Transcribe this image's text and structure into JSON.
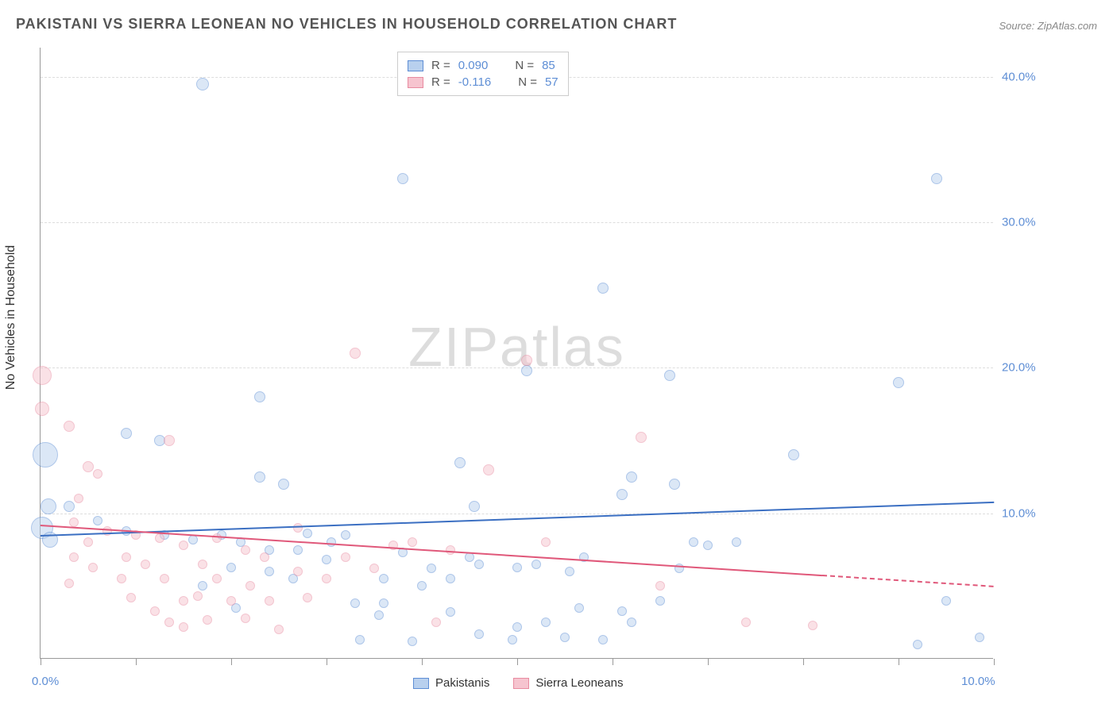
{
  "title": "PAKISTANI VS SIERRA LEONEAN NO VEHICLES IN HOUSEHOLD CORRELATION CHART",
  "source": "Source: ZipAtlas.com",
  "watermark": "ZIPatlas",
  "y_axis_label": "No Vehicles in Household",
  "chart": {
    "type": "scatter",
    "xlim": [
      0,
      10
    ],
    "ylim": [
      0,
      42
    ],
    "x_ticks": [
      0,
      1,
      2,
      3,
      4,
      5,
      6,
      7,
      8,
      9,
      10
    ],
    "x_tick_labels_shown": {
      "0": "0.0%",
      "10": "10.0%"
    },
    "y_ticks": [
      10,
      20,
      30,
      40
    ],
    "y_tick_labels": {
      "10": "10.0%",
      "20": "20.0%",
      "30": "30.0%",
      "40": "40.0%"
    },
    "grid_color": "#dddddd",
    "background_color": "#ffffff",
    "axis_color": "#999999",
    "tick_label_color": "#5e8ed5",
    "series": [
      {
        "name": "Pakistanis",
        "stroke": "#5e8ed5",
        "fill": "#b8d0ee",
        "fill_opacity": 0.5,
        "trend": {
          "y_at_x0": 8.5,
          "y_at_x10": 10.8,
          "color": "#3b6fc2",
          "width": 2
        },
        "stats": {
          "R": "0.090",
          "N": "85"
        },
        "points": [
          {
            "x": 0.05,
            "y": 14,
            "r": 16
          },
          {
            "x": 0.02,
            "y": 9,
            "r": 14
          },
          {
            "x": 0.08,
            "y": 10.5,
            "r": 10
          },
          {
            "x": 0.1,
            "y": 8.2,
            "r": 10
          },
          {
            "x": 1.7,
            "y": 39.5,
            "r": 8
          },
          {
            "x": 3.8,
            "y": 33,
            "r": 7
          },
          {
            "x": 9.4,
            "y": 33,
            "r": 7
          },
          {
            "x": 5.9,
            "y": 25.5,
            "r": 7
          },
          {
            "x": 5.1,
            "y": 19.8,
            "r": 7
          },
          {
            "x": 6.6,
            "y": 19.5,
            "r": 7
          },
          {
            "x": 9.0,
            "y": 19,
            "r": 7
          },
          {
            "x": 2.3,
            "y": 18,
            "r": 7
          },
          {
            "x": 0.9,
            "y": 15.5,
            "r": 7
          },
          {
            "x": 1.25,
            "y": 15,
            "r": 7
          },
          {
            "x": 2.3,
            "y": 12.5,
            "r": 7
          },
          {
            "x": 2.55,
            "y": 12,
            "r": 7
          },
          {
            "x": 4.4,
            "y": 13.5,
            "r": 7
          },
          {
            "x": 4.55,
            "y": 10.5,
            "r": 7
          },
          {
            "x": 6.2,
            "y": 12.5,
            "r": 7
          },
          {
            "x": 6.65,
            "y": 12,
            "r": 7
          },
          {
            "x": 6.1,
            "y": 11.3,
            "r": 7
          },
          {
            "x": 7.9,
            "y": 14,
            "r": 7
          },
          {
            "x": 0.3,
            "y": 10.5,
            "r": 7
          },
          {
            "x": 0.6,
            "y": 9.5,
            "r": 6
          },
          {
            "x": 0.9,
            "y": 8.8,
            "r": 6
          },
          {
            "x": 1.3,
            "y": 8.5,
            "r": 6
          },
          {
            "x": 1.6,
            "y": 8.2,
            "r": 6
          },
          {
            "x": 1.9,
            "y": 8.5,
            "r": 6
          },
          {
            "x": 2.1,
            "y": 8,
            "r": 6
          },
          {
            "x": 2.4,
            "y": 7.5,
            "r": 6
          },
          {
            "x": 2.0,
            "y": 6.3,
            "r": 6
          },
          {
            "x": 2.4,
            "y": 6,
            "r": 6
          },
          {
            "x": 1.7,
            "y": 5,
            "r": 6
          },
          {
            "x": 2.05,
            "y": 3.5,
            "r": 6
          },
          {
            "x": 2.7,
            "y": 7.5,
            "r": 6
          },
          {
            "x": 2.65,
            "y": 5.5,
            "r": 6
          },
          {
            "x": 3.05,
            "y": 8,
            "r": 6
          },
          {
            "x": 3.0,
            "y": 6.8,
            "r": 6
          },
          {
            "x": 3.3,
            "y": 3.8,
            "r": 6
          },
          {
            "x": 3.35,
            "y": 1.3,
            "r": 6
          },
          {
            "x": 3.6,
            "y": 5.5,
            "r": 6
          },
          {
            "x": 3.6,
            "y": 3.8,
            "r": 6
          },
          {
            "x": 3.8,
            "y": 7.3,
            "r": 6
          },
          {
            "x": 3.55,
            "y": 3,
            "r": 6
          },
          {
            "x": 4.1,
            "y": 6.2,
            "r": 6
          },
          {
            "x": 3.9,
            "y": 1.2,
            "r": 6
          },
          {
            "x": 4.0,
            "y": 5,
            "r": 6
          },
          {
            "x": 4.3,
            "y": 5.5,
            "r": 6
          },
          {
            "x": 4.5,
            "y": 7,
            "r": 6
          },
          {
            "x": 4.3,
            "y": 3.2,
            "r": 6
          },
          {
            "x": 4.6,
            "y": 1.7,
            "r": 6
          },
          {
            "x": 4.6,
            "y": 6.5,
            "r": 6
          },
          {
            "x": 5.0,
            "y": 6.3,
            "r": 6
          },
          {
            "x": 5.2,
            "y": 6.5,
            "r": 6
          },
          {
            "x": 5.0,
            "y": 2.2,
            "r": 6
          },
          {
            "x": 4.95,
            "y": 1.3,
            "r": 6
          },
          {
            "x": 5.3,
            "y": 2.5,
            "r": 6
          },
          {
            "x": 5.5,
            "y": 1.5,
            "r": 6
          },
          {
            "x": 5.55,
            "y": 6,
            "r": 6
          },
          {
            "x": 5.65,
            "y": 3.5,
            "r": 6
          },
          {
            "x": 5.7,
            "y": 7,
            "r": 6
          },
          {
            "x": 5.9,
            "y": 1.3,
            "r": 6
          },
          {
            "x": 6.1,
            "y": 3.3,
            "r": 6
          },
          {
            "x": 6.2,
            "y": 2.5,
            "r": 6
          },
          {
            "x": 6.5,
            "y": 4,
            "r": 6
          },
          {
            "x": 6.85,
            "y": 8,
            "r": 6
          },
          {
            "x": 6.7,
            "y": 6.2,
            "r": 6
          },
          {
            "x": 7.0,
            "y": 7.8,
            "r": 6
          },
          {
            "x": 7.3,
            "y": 8,
            "r": 6
          },
          {
            "x": 9.2,
            "y": 1,
            "r": 6
          },
          {
            "x": 9.5,
            "y": 4,
            "r": 6
          },
          {
            "x": 9.85,
            "y": 1.5,
            "r": 6
          },
          {
            "x": 3.2,
            "y": 8.5,
            "r": 6
          },
          {
            "x": 2.8,
            "y": 8.6,
            "r": 6
          }
        ]
      },
      {
        "name": "Sierra Leoneans",
        "stroke": "#e88ba0",
        "fill": "#f6c4cf",
        "fill_opacity": 0.5,
        "trend": {
          "y_at_x0": 9.2,
          "y_at_x10": 5.0,
          "color": "#e0587a",
          "width": 2,
          "solid_to_x": 8.2
        },
        "stats": {
          "R": "-0.116",
          "N": "57"
        },
        "points": [
          {
            "x": 0.02,
            "y": 19.5,
            "r": 12
          },
          {
            "x": 0.02,
            "y": 17.2,
            "r": 9
          },
          {
            "x": 0.3,
            "y": 16,
            "r": 7
          },
          {
            "x": 0.5,
            "y": 13.2,
            "r": 7
          },
          {
            "x": 0.6,
            "y": 12.7,
            "r": 6
          },
          {
            "x": 1.35,
            "y": 15,
            "r": 7
          },
          {
            "x": 3.3,
            "y": 21,
            "r": 7
          },
          {
            "x": 5.1,
            "y": 20.5,
            "r": 7
          },
          {
            "x": 4.7,
            "y": 13,
            "r": 7
          },
          {
            "x": 6.3,
            "y": 15.2,
            "r": 7
          },
          {
            "x": 0.4,
            "y": 11,
            "r": 6
          },
          {
            "x": 0.35,
            "y": 9.4,
            "r": 6
          },
          {
            "x": 0.5,
            "y": 8,
            "r": 6
          },
          {
            "x": 0.55,
            "y": 6.3,
            "r": 6
          },
          {
            "x": 0.7,
            "y": 8.8,
            "r": 6
          },
          {
            "x": 0.35,
            "y": 7,
            "r": 6
          },
          {
            "x": 0.3,
            "y": 5.2,
            "r": 6
          },
          {
            "x": 0.9,
            "y": 7,
            "r": 6
          },
          {
            "x": 0.85,
            "y": 5.5,
            "r": 6
          },
          {
            "x": 1.0,
            "y": 8.5,
            "r": 6
          },
          {
            "x": 1.1,
            "y": 6.5,
            "r": 6
          },
          {
            "x": 0.95,
            "y": 4.2,
            "r": 6
          },
          {
            "x": 1.2,
            "y": 3.3,
            "r": 6
          },
          {
            "x": 1.25,
            "y": 8.3,
            "r": 6
          },
          {
            "x": 1.3,
            "y": 5.5,
            "r": 6
          },
          {
            "x": 1.35,
            "y": 2.5,
            "r": 6
          },
          {
            "x": 1.5,
            "y": 7.8,
            "r": 6
          },
          {
            "x": 1.5,
            "y": 4,
            "r": 6
          },
          {
            "x": 1.5,
            "y": 2.2,
            "r": 6
          },
          {
            "x": 1.7,
            "y": 6.5,
            "r": 6
          },
          {
            "x": 1.65,
            "y": 4.3,
            "r": 6
          },
          {
            "x": 1.75,
            "y": 2.7,
            "r": 6
          },
          {
            "x": 1.85,
            "y": 8.3,
            "r": 6
          },
          {
            "x": 1.85,
            "y": 5.5,
            "r": 6
          },
          {
            "x": 2.0,
            "y": 4,
            "r": 6
          },
          {
            "x": 2.15,
            "y": 7.5,
            "r": 6
          },
          {
            "x": 2.2,
            "y": 5,
            "r": 6
          },
          {
            "x": 2.15,
            "y": 2.8,
            "r": 6
          },
          {
            "x": 2.4,
            "y": 4,
            "r": 6
          },
          {
            "x": 2.35,
            "y": 7,
            "r": 6
          },
          {
            "x": 2.5,
            "y": 2,
            "r": 6
          },
          {
            "x": 2.7,
            "y": 9,
            "r": 6
          },
          {
            "x": 2.7,
            "y": 6,
            "r": 6
          },
          {
            "x": 2.8,
            "y": 4.2,
            "r": 6
          },
          {
            "x": 3.0,
            "y": 5.5,
            "r": 6
          },
          {
            "x": 3.2,
            "y": 7,
            "r": 6
          },
          {
            "x": 3.5,
            "y": 6.2,
            "r": 6
          },
          {
            "x": 3.7,
            "y": 7.8,
            "r": 6
          },
          {
            "x": 3.9,
            "y": 8,
            "r": 6
          },
          {
            "x": 4.3,
            "y": 7.5,
            "r": 6
          },
          {
            "x": 4.15,
            "y": 2.5,
            "r": 6
          },
          {
            "x": 5.3,
            "y": 8,
            "r": 6
          },
          {
            "x": 6.5,
            "y": 5,
            "r": 6
          },
          {
            "x": 7.4,
            "y": 2.5,
            "r": 6
          },
          {
            "x": 8.1,
            "y": 2.3,
            "r": 6
          }
        ]
      }
    ]
  },
  "legend_top": {
    "rows": [
      {
        "swatch_fill": "#b8d0ee",
        "swatch_stroke": "#5e8ed5",
        "r_label": "R =",
        "r_val": "0.090",
        "n_label": "N =",
        "n_val": "85"
      },
      {
        "swatch_fill": "#f6c4cf",
        "swatch_stroke": "#e88ba0",
        "r_label": "R =",
        "r_val": "-0.116",
        "n_label": "N =",
        "n_val": "57"
      }
    ]
  },
  "legend_bottom": {
    "items": [
      {
        "swatch_fill": "#b8d0ee",
        "swatch_stroke": "#5e8ed5",
        "label": "Pakistanis"
      },
      {
        "swatch_fill": "#f6c4cf",
        "swatch_stroke": "#e88ba0",
        "label": "Sierra Leoneans"
      }
    ]
  }
}
